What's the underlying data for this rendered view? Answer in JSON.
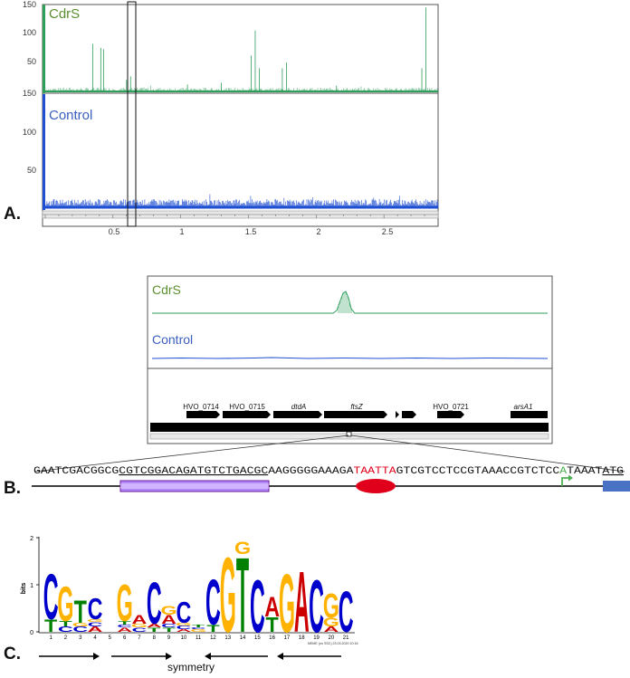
{
  "colors": {
    "cdrs": "#2e9e5b",
    "cdrs_label": "#5a8f2e",
    "control": "#1f4fd1",
    "control_label": "#3a5fbf",
    "site_red": "#e0001b",
    "tss_green": "#4caf50",
    "motif_box": "#b388ff",
    "gene_box": "#4a72c4",
    "logo_A": "#cc0000",
    "logo_C": "#0000cc",
    "logo_G": "#ffb300",
    "logo_T": "#008000"
  },
  "panel_a": {
    "panel_label": "A.",
    "track1_label": "CdrS",
    "track2_label": "Control",
    "y_ticks_top": [
      "150",
      "100",
      "50"
    ],
    "y_ticks_bottom": [
      "150",
      "100",
      "50"
    ],
    "x_ticks": [
      "0.5",
      "1",
      "1.5",
      "2",
      "2.5"
    ],
    "cdrs_peaks": [
      {
        "x": 0.35,
        "h": 82
      },
      {
        "x": 0.41,
        "h": 75
      },
      {
        "x": 0.43,
        "h": 73
      },
      {
        "x": 0.6,
        "h": 20
      },
      {
        "x": 0.63,
        "h": 26
      },
      {
        "x": 1.05,
        "h": 12
      },
      {
        "x": 1.3,
        "h": 15
      },
      {
        "x": 1.52,
        "h": 62
      },
      {
        "x": 1.55,
        "h": 105
      },
      {
        "x": 1.58,
        "h": 40
      },
      {
        "x": 1.75,
        "h": 40
      },
      {
        "x": 1.78,
        "h": 50
      },
      {
        "x": 2.15,
        "h": 10
      },
      {
        "x": 2.78,
        "h": 40
      },
      {
        "x": 2.81,
        "h": 145
      }
    ]
  },
  "panel_b": {
    "panel_label": "B.",
    "track1_label": "CdrS",
    "track2_label": "Control",
    "genes": [
      "HVO_0714",
      "HVO_0715",
      "dtdA",
      "ftsZ",
      "HVO_0721",
      "arsA1"
    ],
    "seq_part1": "GAATCGACGGCG",
    "seq_part2": "CGTCGGACAGATGTCTGACGC",
    "seq_part3": "AAGGGGGAAAGA",
    "seq_part4": "TAATTA",
    "seq_part5": "GTCGTCCTCCGTAAACCGTCTCC",
    "seq_part6": "A",
    "seq_part7": "TAAAT",
    "seq_part8": "ATG"
  },
  "panel_c": {
    "panel_label": "C.",
    "y_axis_label": "bits",
    "y_ticks": [
      "2",
      "1",
      "0"
    ],
    "positions": [
      "1",
      "2",
      "3",
      "4",
      "5",
      "6",
      "7",
      "8",
      "9",
      "10",
      "11",
      "12",
      "13",
      "14",
      "15",
      "16",
      "17",
      "18",
      "19",
      "20",
      "21"
    ],
    "footer": "MEME (no SSC) 23.03.2020 10:16",
    "symmetry_label": "symmetry"
  }
}
